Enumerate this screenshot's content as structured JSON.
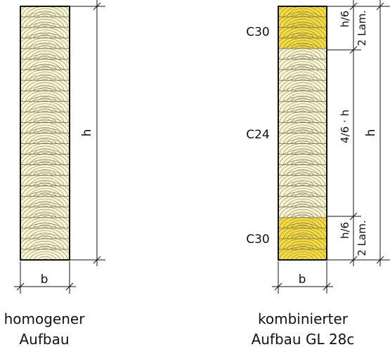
{
  "left": {
    "caption_line1": "homogener",
    "caption_line2": "Aufbau",
    "dim_h": "h",
    "dim_b": "b"
  },
  "right": {
    "caption_line1": "kombinierter",
    "caption_line2": "Aufbau GL 28c",
    "grade_top": "C30",
    "grade_mid": "C24",
    "grade_bottom": "C30",
    "dim_top_ratio": "h/6",
    "dim_top_lam": "2 Lam.",
    "dim_mid": "4/6 · h",
    "dim_bottom_ratio": "h/6",
    "dim_bottom_lam": "2 Lam.",
    "dim_h": "h",
    "dim_b": "b"
  },
  "colors": {
    "light_wood": "#fbf6d2",
    "strong_wood": "#f7dc3a",
    "grain": "#7a7458",
    "outline": "#111111"
  },
  "lamella_count": 24
}
